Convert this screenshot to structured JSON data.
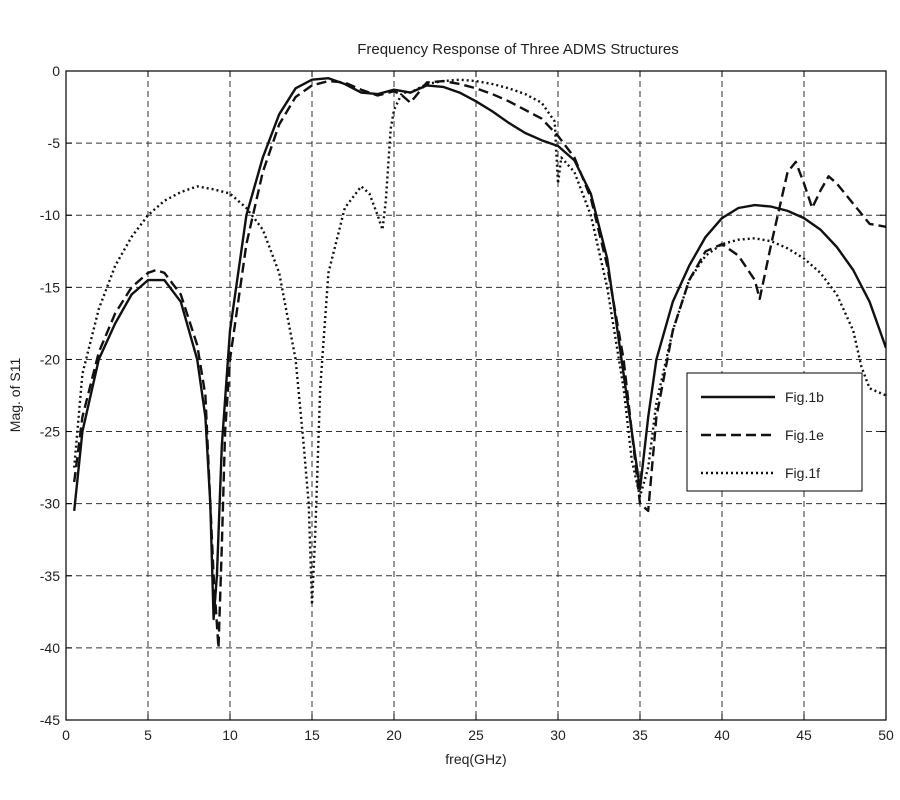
{
  "chart_data": {
    "type": "line",
    "title": "Frequency Response of Three ADMS Structures",
    "xlabel": "freq(GHz)",
    "ylabel": "Mag. of S11",
    "xlim": [
      0,
      50
    ],
    "ylim": [
      -45,
      0
    ],
    "xticks": [
      "0",
      "5",
      "10",
      "15",
      "20",
      "25",
      "30",
      "35",
      "40",
      "45",
      "50"
    ],
    "yticks": [
      "0",
      "-5",
      "-10",
      "-15",
      "-20",
      "-25",
      "-30",
      "-35",
      "-40",
      "-45"
    ],
    "grid": true,
    "legend_position": "right",
    "series": [
      {
        "name": "Fig.1b",
        "style": "solid",
        "x": [
          0.5,
          1,
          2,
          3,
          4,
          5,
          6,
          7,
          8,
          8.5,
          8.8,
          9.0,
          9.2,
          9.5,
          10,
          11,
          12,
          13,
          14,
          15,
          16,
          17,
          18,
          19,
          20,
          21,
          22,
          23,
          24,
          25,
          26,
          27,
          28,
          29,
          30,
          31,
          32,
          33,
          33.5,
          34,
          34.5,
          35,
          35.5,
          36,
          37,
          38,
          39,
          40,
          41,
          42,
          43,
          44,
          45,
          46,
          47,
          48,
          49,
          50
        ],
        "y": [
          -30.5,
          -25,
          -20,
          -17.5,
          -15.5,
          -14.5,
          -14.5,
          -16,
          -20,
          -24,
          -30,
          -38,
          -35,
          -26,
          -18,
          -10,
          -6,
          -3,
          -1.2,
          -0.6,
          -0.5,
          -0.9,
          -1.5,
          -1.6,
          -1.3,
          -1.5,
          -1.0,
          -1.1,
          -1.5,
          -2.1,
          -2.8,
          -3.6,
          -4.3,
          -4.8,
          -5.2,
          -6.2,
          -8.5,
          -13,
          -17,
          -21,
          -25,
          -29,
          -24,
          -20,
          -16,
          -13.5,
          -11.5,
          -10.2,
          -9.5,
          -9.3,
          -9.4,
          -9.7,
          -10.2,
          -11,
          -12.2,
          -13.8,
          -16,
          -19.2
        ]
      },
      {
        "name": "Fig.1e",
        "style": "dashed",
        "x": [
          0.5,
          1,
          2,
          3,
          4,
          5,
          5.5,
          6,
          7,
          8,
          8.5,
          9.0,
          9.3,
          9.5,
          9.7,
          10,
          11,
          12,
          13,
          14,
          15,
          16,
          17,
          18,
          19,
          20,
          20.5,
          21,
          22,
          23,
          24,
          25,
          26,
          27,
          28,
          29,
          30,
          31,
          32,
          33,
          34,
          34.5,
          35,
          35.5,
          36,
          37,
          38,
          39,
          40,
          41,
          42,
          42.3,
          43,
          44,
          44.5,
          45,
          45.5,
          46,
          46.5,
          47,
          48,
          49,
          50
        ],
        "y": [
          -28.5,
          -24,
          -19.5,
          -16.8,
          -15,
          -14,
          -13.8,
          -14,
          -15.5,
          -19,
          -22.5,
          -35,
          -40,
          -33,
          -25,
          -20,
          -12,
          -7,
          -3.7,
          -1.8,
          -1.0,
          -0.7,
          -0.8,
          -1.3,
          -1.7,
          -1.4,
          -1.7,
          -2.2,
          -0.8,
          -0.7,
          -0.9,
          -1.2,
          -1.6,
          -2.1,
          -2.7,
          -3.3,
          -4.5,
          -6.0,
          -8.8,
          -13.5,
          -20,
          -25,
          -30,
          -30.5,
          -24,
          -18,
          -14.5,
          -12.5,
          -12,
          -12.8,
          -14.5,
          -15.8,
          -12,
          -7,
          -6.3,
          -7.8,
          -9.5,
          -8.3,
          -7.3,
          -7.8,
          -9.2,
          -10.6,
          -10.8
        ]
      },
      {
        "name": "Fig.1f",
        "style": "dotted",
        "x": [
          0.5,
          1,
          2,
          3,
          4,
          5,
          6,
          7,
          8,
          9,
          10,
          11,
          12,
          13,
          14,
          14.5,
          14.8,
          15.0,
          15.2,
          15.5,
          16,
          17,
          18,
          18.5,
          19,
          19.3,
          19.5,
          19.8,
          20,
          20.5,
          21,
          22,
          23,
          24,
          25,
          26,
          27,
          28,
          29,
          29.8,
          30.0,
          30.2,
          31,
          32,
          33,
          34,
          34.5,
          35,
          35.5,
          36,
          37,
          38,
          39,
          40,
          41,
          42,
          43,
          44,
          45,
          46,
          47,
          48,
          48.5,
          49,
          50
        ],
        "y": [
          -27.5,
          -21,
          -16.5,
          -13.5,
          -11.5,
          -10,
          -9,
          -8.4,
          -8,
          -8.2,
          -8.5,
          -9.5,
          -11,
          -14,
          -20,
          -26,
          -30,
          -37,
          -32,
          -22,
          -14,
          -9.5,
          -8,
          -8.5,
          -10,
          -11,
          -9,
          -4,
          -2.7,
          -1.5,
          -1.5,
          -0.9,
          -0.7,
          -0.6,
          -0.7,
          -0.9,
          -1.2,
          -1.6,
          -2.2,
          -3.5,
          -7.8,
          -6,
          -7,
          -10,
          -15,
          -22,
          -27,
          -29.5,
          -27.5,
          -23,
          -18,
          -14.5,
          -12.8,
          -12,
          -11.7,
          -11.6,
          -11.8,
          -12.3,
          -13,
          -14,
          -15.5,
          -18,
          -20.5,
          -22,
          -22.5
        ]
      }
    ]
  }
}
